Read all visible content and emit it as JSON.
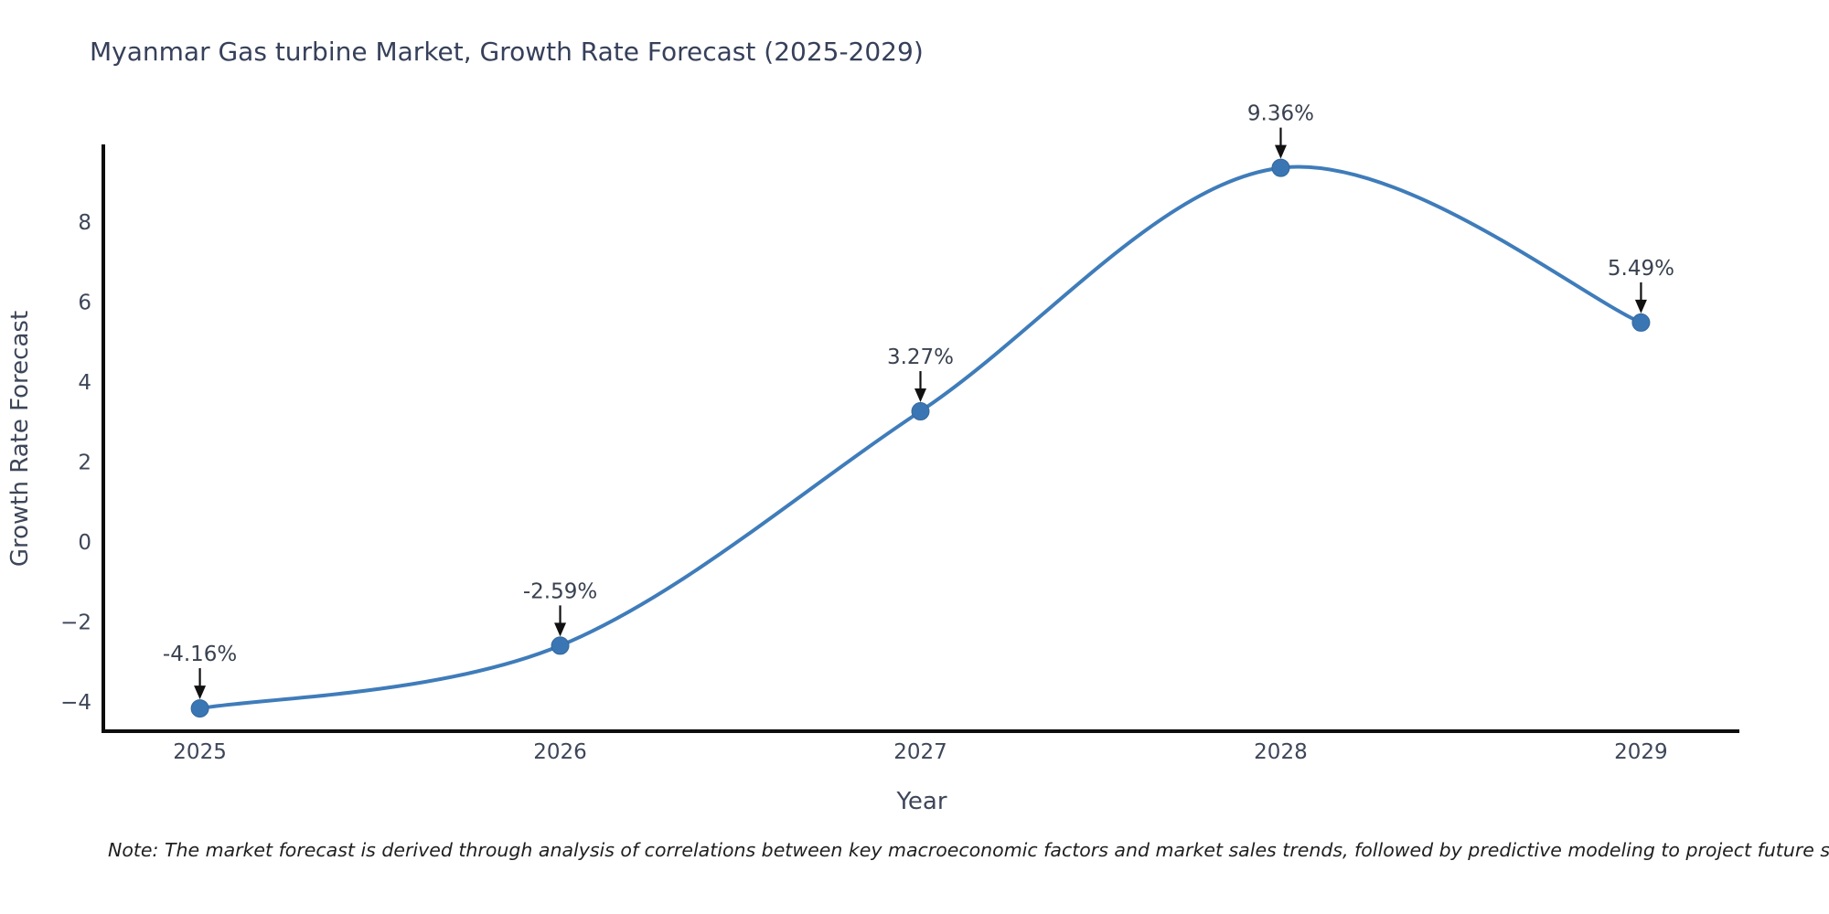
{
  "page": {
    "background": "#ffffff"
  },
  "chart_data": {
    "type": "line",
    "title": "Myanmar Gas turbine Market, Growth Rate Forecast (2025-2029)",
    "xlabel": "Year",
    "ylabel": "Growth Rate Forecast",
    "x": [
      2025,
      2026,
      2027,
      2028,
      2029
    ],
    "values": [
      -4.16,
      -2.59,
      3.27,
      9.36,
      5.49
    ],
    "point_labels": [
      "-4.16%",
      "-2.59%",
      "3.27%",
      "9.36%",
      "5.49%"
    ],
    "x_tick_labels": [
      "2025",
      "2026",
      "2027",
      "2028",
      "2029"
    ],
    "y_ticks": [
      8,
      6,
      4,
      2,
      0,
      -2,
      -4
    ],
    "y_tick_labels": [
      "8",
      "6",
      "4",
      "2",
      "0",
      "−2",
      "−4"
    ],
    "xlim": [
      2024.732,
      2029.268
    ],
    "ylim": [
      -4.73,
      9.9
    ],
    "grid": false,
    "legend": "none",
    "curve_style": "smooth-spline",
    "line_color": "#3f7cba",
    "marker_color": "#3a76b4",
    "marker_edge_color": "#33689e",
    "axis_color": "#0d0d0d",
    "arrow_color": "#111111"
  },
  "note": {
    "text": "Note: The market forecast is derived through analysis of correlations between key macroeconomic factors and market sales trends, followed by predictive modeling to project future sales"
  }
}
